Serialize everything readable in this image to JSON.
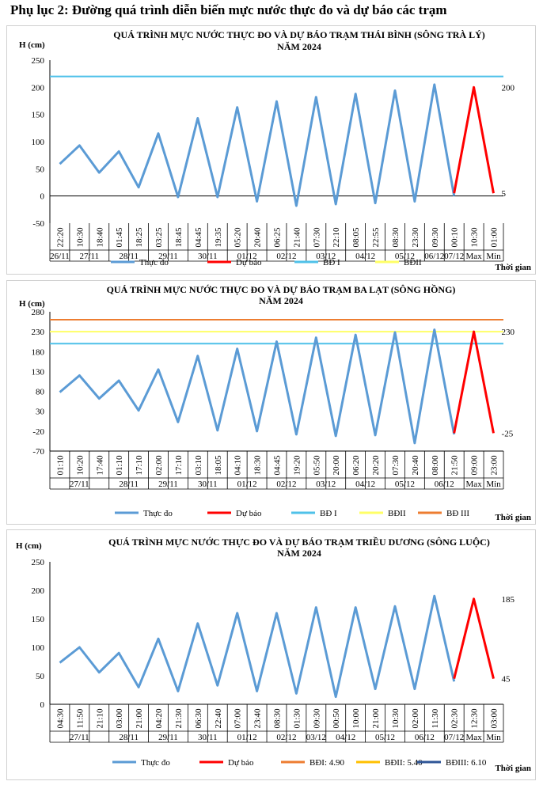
{
  "page_title": "Phụ lục 2: Đường quá trình diễn biến mực nước thực đo và dự báo các trạm",
  "chart_data": [
    {
      "type": "line",
      "title_line1": "QUÁ TRÌNH MỰC NƯỚC THỰC ĐO VÀ DỰ BÁO TRẠM THÁI BÌNH (SÔNG TRÀ LÝ)",
      "title_line2": "NĂM 2024",
      "ylabel": "H (cm)",
      "xlabel": "Thời gian",
      "ylim": [
        -50,
        250
      ],
      "yticks": [
        250,
        200,
        150,
        100,
        50,
        0,
        -50
      ],
      "times": [
        "22:20",
        "10:30",
        "18:40",
        "01:45",
        "18:25",
        "03:25",
        "18:45",
        "04:45",
        "19:35",
        "05:20",
        "20:40",
        "06:25",
        "21:40",
        "07:30",
        "22:10",
        "08:05",
        "22:55",
        "08:30",
        "23:30",
        "09:30",
        "00:10",
        "10:30",
        "01:00"
      ],
      "date_labels": [
        "26/11",
        "27/11",
        "28/11",
        "29/11",
        "30/11",
        "01/12",
        "02/12",
        "03/12",
        "04/12",
        "05/12",
        "06/12",
        "07/12",
        "Max",
        "Min"
      ],
      "observed": [
        59,
        93,
        43,
        82,
        16,
        115,
        -2,
        143,
        -2,
        163,
        -10,
        174,
        -18,
        182,
        -15,
        188,
        -13,
        194,
        -10,
        205,
        0
      ],
      "forecast_start_index": 20,
      "forecast": [
        5,
        200,
        5
      ],
      "forecast_labels": [
        "200",
        "5"
      ],
      "reference_lines": [
        {
          "name": "BĐ I",
          "value": 220,
          "color": "#4fc1e9"
        }
      ],
      "legend": [
        {
          "label": "Thực đo",
          "color": "#5b9bd5"
        },
        {
          "label": "Dự báo",
          "color": "#ff0000"
        },
        {
          "label": "BĐ I",
          "color": "#4fc1e9"
        },
        {
          "label": "BĐII",
          "color": "#ffff66"
        }
      ]
    },
    {
      "type": "line",
      "title_line1": "QUÁ TRÌNH MỰC NƯỚC THỰC ĐO VÀ DỰ BÁO TRẠM BA LẠT (SÔNG HỒNG)",
      "title_line2": "NĂM 2024",
      "ylabel": "H (cm)",
      "xlabel": "Thời gian",
      "ylim": [
        -70,
        280
      ],
      "yticks": [
        280,
        230,
        180,
        130,
        80,
        30,
        -20,
        -70
      ],
      "times": [
        "01:10",
        "10:20",
        "17:40",
        "01:10",
        "17:10",
        "02:00",
        "17:10",
        "03:10",
        "18:05",
        "04:10",
        "18:30",
        "04:45",
        "19:20",
        "05:50",
        "20:00",
        "06:20",
        "20:20",
        "07:30",
        "20:40",
        "08:00",
        "21:50",
        "09:00",
        "23:00"
      ],
      "date_labels": [
        "27/11",
        "28/11",
        "29/11",
        "30/11",
        "01/12",
        "02/12",
        "03/12",
        "04/12",
        "05/12",
        "06/12",
        "Max",
        "Min"
      ],
      "observed": [
        78,
        120,
        62,
        107,
        32,
        135,
        3,
        169,
        -18,
        187,
        -20,
        205,
        -28,
        215,
        -32,
        222,
        -30,
        228,
        -50,
        235,
        -28
      ],
      "forecast_start_index": 20,
      "forecast": [
        -25,
        230,
        -25
      ],
      "forecast_labels": [
        "230",
        "-25"
      ],
      "reference_lines": [
        {
          "name": "BĐ I",
          "value": 200,
          "color": "#4fc1e9"
        },
        {
          "name": "BĐII",
          "value": 230,
          "color": "#ffff66"
        },
        {
          "name": "BĐ III",
          "value": 260,
          "color": "#ed7d31"
        }
      ],
      "legend": [
        {
          "label": "Thực đo",
          "color": "#5b9bd5"
        },
        {
          "label": "Dự báo",
          "color": "#ff0000"
        },
        {
          "label": "BĐ I",
          "color": "#4fc1e9"
        },
        {
          "label": "BĐII",
          "color": "#ffff66"
        },
        {
          "label": "BĐ III",
          "color": "#ed7d31"
        }
      ]
    },
    {
      "type": "line",
      "title_line1": "QUÁ TRÌNH MỰC NƯỚC THỰC ĐO VÀ DỰ BÁO TRẠM TRIỀU DƯƠNG (SÔNG LUỘC)",
      "title_line2": "NĂM 2024",
      "ylabel": "H (cm)",
      "xlabel": "Thời gian",
      "ylim": [
        0,
        250
      ],
      "yticks": [
        250,
        200,
        150,
        100,
        50,
        0
      ],
      "times": [
        "04:30",
        "11:50",
        "21:10",
        "03:00",
        "21:00",
        "04:20",
        "21:30",
        "06:30",
        "22:40",
        "07:00",
        "23:40",
        "08:30",
        "01:30",
        "09:30",
        "00:50",
        "10:00",
        "21:00",
        "10:30",
        "02:00",
        "11:30",
        "02:30",
        "12:30",
        "03:00"
      ],
      "date_labels": [
        "27/11",
        "28/11",
        "29/11",
        "30/11",
        "01/12",
        "02/12",
        "03/12",
        "04/12",
        "05/12",
        "06/12",
        "07/12",
        "Max",
        "Min"
      ],
      "observed": [
        73,
        100,
        56,
        90,
        30,
        115,
        23,
        142,
        33,
        160,
        23,
        160,
        19,
        170,
        13,
        170,
        27,
        172,
        27,
        190,
        40
      ],
      "forecast_start_index": 20,
      "forecast": [
        45,
        185,
        45
      ],
      "forecast_labels": [
        "185",
        "45"
      ],
      "reference_lines": [],
      "legend": [
        {
          "label": "Thực đo",
          "color": "#5b9bd5"
        },
        {
          "label": "Dự báo",
          "color": "#ff0000"
        },
        {
          "label": "BĐI: 4.90",
          "color": "#ed7d31"
        },
        {
          "label": "BĐII: 5.40",
          "color": "#ffc000"
        },
        {
          "label": "BĐIII: 6.10",
          "color": "#2f5597"
        }
      ]
    }
  ]
}
